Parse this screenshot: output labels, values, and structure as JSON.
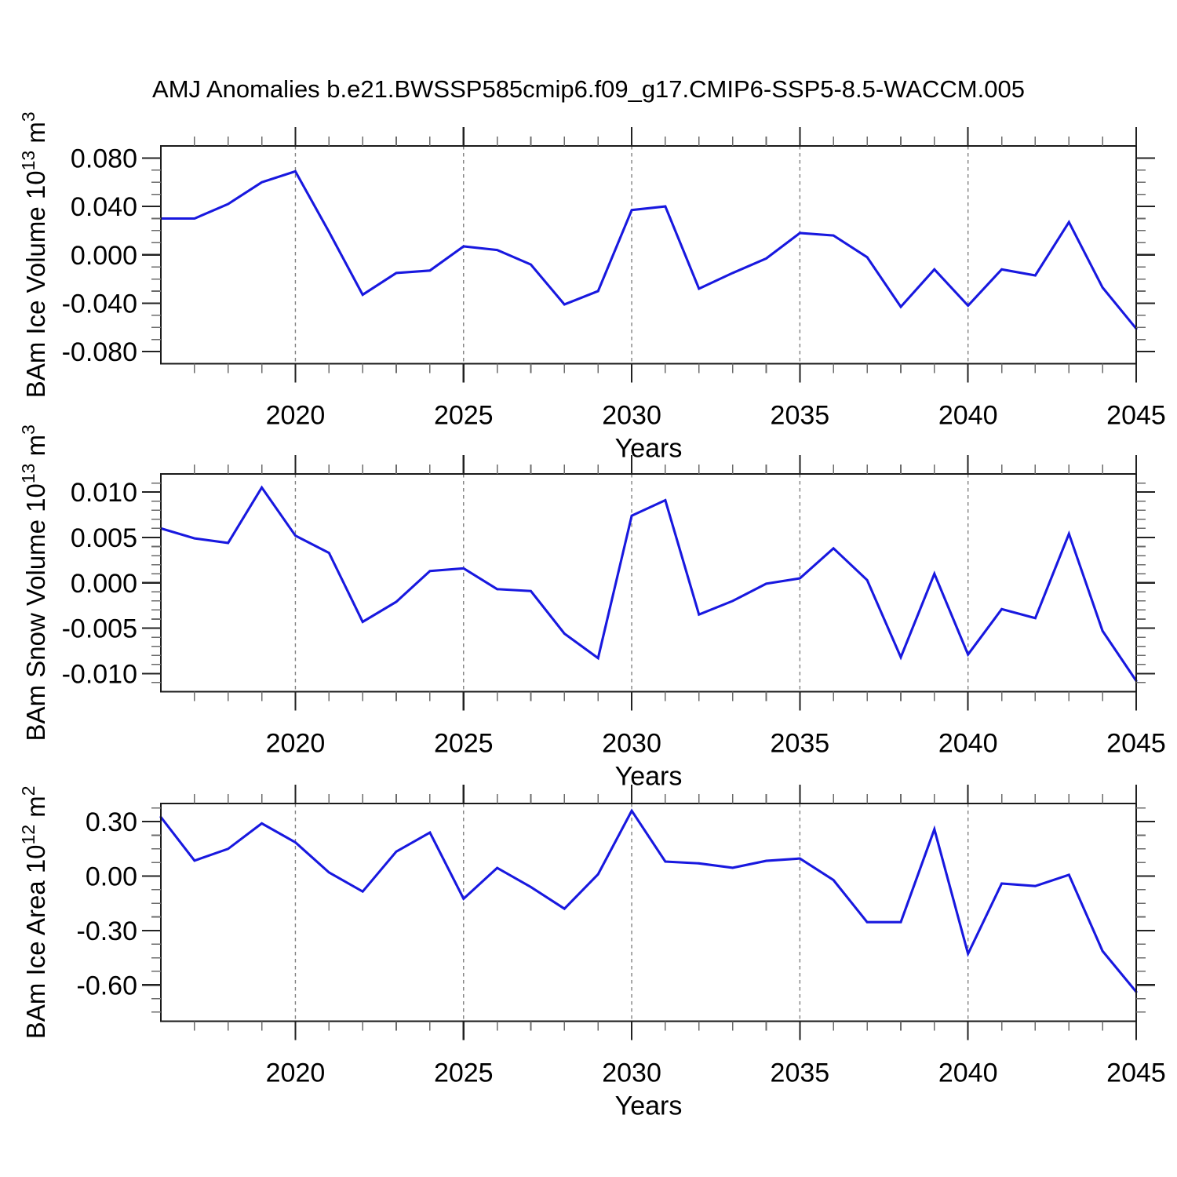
{
  "title": "AMJ Anomalies b.e21.BWSSP585cmip6.f09_g17.CMIP6-SSP5-8.5-WACCM.005",
  "colors": {
    "line": "#1818df",
    "frame": "#1a1a1a",
    "major_tick": "#222222",
    "minor_tick": "#6b6b6b",
    "gridline": "#808080",
    "text": "#000000",
    "background": "#ffffff"
  },
  "chart_data": {
    "type": "line",
    "title": "AMJ Anomalies b.e21.BWSSP585cmip6.f09_g17.CMIP6-SSP5-8.5-WACCM.005",
    "xlabel": "Years",
    "x": [
      2016,
      2017,
      2018,
      2019,
      2020,
      2021,
      2022,
      2023,
      2024,
      2025,
      2026,
      2027,
      2028,
      2029,
      2030,
      2031,
      2032,
      2033,
      2034,
      2035,
      2036,
      2037,
      2038,
      2039,
      2040,
      2041,
      2042,
      2043,
      2044,
      2045
    ],
    "xlim": [
      2016,
      2045
    ],
    "xticks": {
      "major": [
        2020,
        2025,
        2030,
        2035,
        2040,
        2045
      ],
      "labels": [
        "2020",
        "2025",
        "2030",
        "2035",
        "2040",
        "2045"
      ],
      "minor_step": 1
    },
    "gridlines_x": [
      2020,
      2025,
      2030,
      2035,
      2040
    ],
    "grid_style": "vertical-dashed",
    "legend": "none",
    "panels": [
      {
        "name": "ice-volume",
        "ylabel_text": "BAm Ice Volume 10^13 m^3",
        "ylabel_parts": [
          {
            "t": "BAm Ice Volume 10"
          },
          {
            "t": "13",
            "sup": true
          },
          {
            "t": " m"
          },
          {
            "t": "3",
            "sup": true
          }
        ],
        "ylim": [
          -0.09,
          0.09
        ],
        "yticks": {
          "major": [
            0.08,
            0.04,
            0.0,
            -0.04,
            -0.08
          ],
          "labels": [
            "0.080",
            "0.040",
            "0.000",
            "-0.040",
            "-0.080"
          ],
          "minor_step": 0.01
        },
        "values": [
          0.03,
          0.03,
          0.042,
          0.06,
          0.069,
          0.019,
          -0.033,
          -0.015,
          -0.013,
          0.007,
          0.004,
          -0.008,
          -0.041,
          -0.03,
          0.037,
          0.04,
          -0.028,
          -0.015,
          -0.003,
          0.018,
          0.016,
          -0.002,
          -0.043,
          -0.012,
          -0.042,
          -0.012,
          -0.017,
          0.027,
          -0.027,
          -0.061
        ]
      },
      {
        "name": "snow-volume",
        "ylabel_text": "BAm Snow Volume 10^13 m^3",
        "ylabel_parts": [
          {
            "t": "BAm Snow Volume 10"
          },
          {
            "t": "13",
            "sup": true
          },
          {
            "t": " m"
          },
          {
            "t": "3",
            "sup": true
          }
        ],
        "ylim": [
          -0.012,
          0.012
        ],
        "yticks": {
          "major": [
            0.01,
            0.005,
            0.0,
            -0.005,
            -0.01
          ],
          "labels": [
            "0.010",
            "0.005",
            "0.000",
            "-0.005",
            "-0.010"
          ],
          "minor_step": 0.001
        },
        "values": [
          0.006,
          0.0049,
          0.0044,
          0.0105,
          0.0052,
          0.0033,
          -0.0043,
          -0.0021,
          0.0013,
          0.0016,
          -0.0007,
          -0.0009,
          -0.0056,
          -0.0083,
          0.0074,
          0.0091,
          -0.0035,
          -0.002,
          -0.0001,
          0.0005,
          0.0038,
          0.0003,
          -0.0082,
          0.001,
          -0.0079,
          -0.0029,
          -0.0039,
          0.0054,
          -0.0053,
          -0.0108
        ]
      },
      {
        "name": "ice-area",
        "ylabel_text": "BAm Ice Area 10^12 m^2",
        "ylabel_parts": [
          {
            "t": "BAm Ice Area 10"
          },
          {
            "t": "12",
            "sup": true
          },
          {
            "t": " m"
          },
          {
            "t": "2",
            "sup": true
          }
        ],
        "ylim": [
          -0.8,
          0.4
        ],
        "yticks": {
          "major": [
            0.3,
            0.0,
            -0.3,
            -0.6
          ],
          "labels": [
            "0.30",
            "0.00",
            "-0.30",
            "-0.60"
          ],
          "minor_step": 0.075
        },
        "values": [
          0.325,
          0.085,
          0.15,
          0.29,
          0.186,
          0.02,
          -0.085,
          0.135,
          0.24,
          -0.125,
          0.045,
          -0.06,
          -0.18,
          0.01,
          0.36,
          0.08,
          0.07,
          0.046,
          0.084,
          0.097,
          -0.022,
          -0.254,
          -0.254,
          0.258,
          -0.428,
          -0.041,
          -0.055,
          0.007,
          -0.413,
          -0.638
        ]
      }
    ]
  }
}
